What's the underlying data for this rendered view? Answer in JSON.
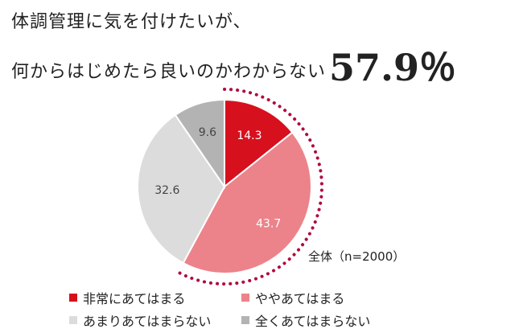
{
  "title": {
    "line1": "体調管理に気を付けたいが、",
    "line2": "何からはじめたら良いのかわからない",
    "headline_value": "57.9％"
  },
  "sample_label": "全体（n=2000）",
  "chart_data": {
    "type": "pie",
    "start_angle_deg": 0,
    "direction": "clockwise",
    "slices": [
      {
        "label": "非常にあてはまる",
        "value": 14.3,
        "color": "#d7101e",
        "value_color": "#ffffff"
      },
      {
        "label": "ややあてはまる",
        "value": 43.7,
        "color": "#ec838a",
        "value_color": "#ffffff"
      },
      {
        "label": "あまりあてはまらない",
        "value": 32.6,
        "color": "#dcdcdc",
        "value_color": "#444444"
      },
      {
        "label": "全くあてはまらない",
        "value": 9.6,
        "color": "#b3b3b3",
        "value_color": "#444444"
      }
    ],
    "highlight": {
      "covers_slices": [
        0,
        1
      ],
      "color": "#b0093f",
      "style": "dotted-arc"
    }
  }
}
